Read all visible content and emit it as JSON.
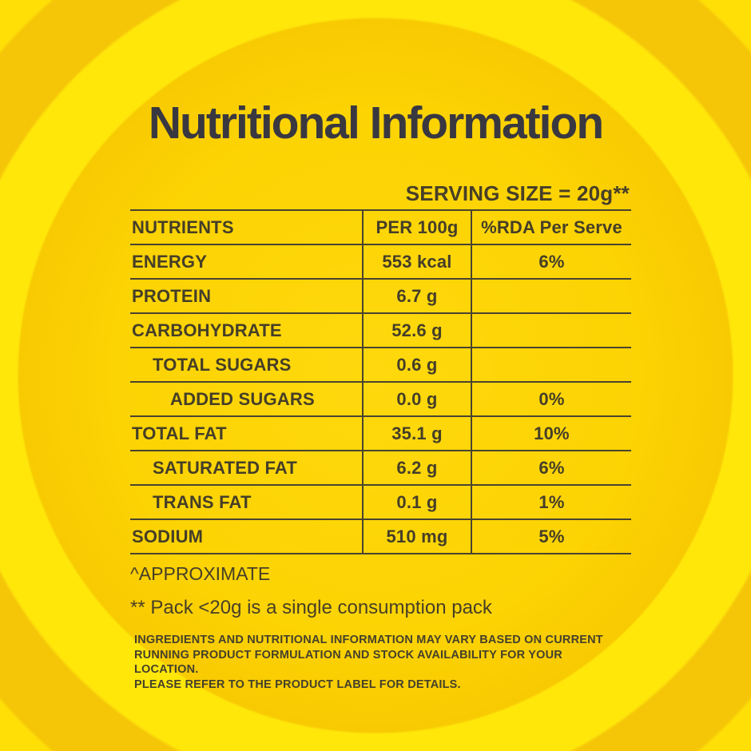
{
  "title": "Nutritional Information",
  "serving_size_label": "SERVING SIZE = 20g**",
  "table": {
    "columns": [
      "NUTRIENTS",
      "PER 100g",
      "%RDA Per Serve"
    ],
    "rows": [
      {
        "label": "ENERGY",
        "indent": 0,
        "per_100g": "553 kcal",
        "rda_per_serve": "6%"
      },
      {
        "label": "PROTEIN",
        "indent": 0,
        "per_100g": "6.7 g",
        "rda_per_serve": ""
      },
      {
        "label": "CARBOHYDRATE",
        "indent": 0,
        "per_100g": "52.6 g",
        "rda_per_serve": ""
      },
      {
        "label": "TOTAL SUGARS",
        "indent": 1,
        "per_100g": "0.6 g",
        "rda_per_serve": ""
      },
      {
        "label": "ADDED SUGARS",
        "indent": 2,
        "per_100g": "0.0 g",
        "rda_per_serve": "0%"
      },
      {
        "label": "TOTAL FAT",
        "indent": 0,
        "per_100g": "35.1 g",
        "rda_per_serve": "10%"
      },
      {
        "label": "SATURATED FAT",
        "indent": 1,
        "per_100g": "6.2 g",
        "rda_per_serve": "6%"
      },
      {
        "label": "TRANS FAT",
        "indent": 1,
        "per_100g": "0.1 g",
        "rda_per_serve": "1%"
      },
      {
        "label": "SODIUM",
        "indent": 0,
        "per_100g": "510 mg",
        "rda_per_serve": "5%"
      }
    ]
  },
  "footnotes": {
    "approximate": "^APPROXIMATE",
    "pack_note": "** Pack <20g is a single consumption pack",
    "disclaimer_lines": [
      "INGREDIENTS AND NUTRITIONAL INFORMATION MAY VARY BASED ON CURRENT",
      "RUNNING PRODUCT FORMULATION AND STOCK AVAILABILITY FOR YOUR LOCATION.",
      "PLEASE REFER TO THE PRODUCT LABEL FOR DETAILS."
    ]
  },
  "colors": {
    "inner_circle_yellow": "#FCD303",
    "bright_ring_yellow": "#FFE70A",
    "dark_gold_ring": "#F5C608",
    "corner_yellow": "#FFDF06",
    "title_ink": "#393840",
    "table_ink": "#453E28",
    "line_ink": "#4A4330"
  }
}
